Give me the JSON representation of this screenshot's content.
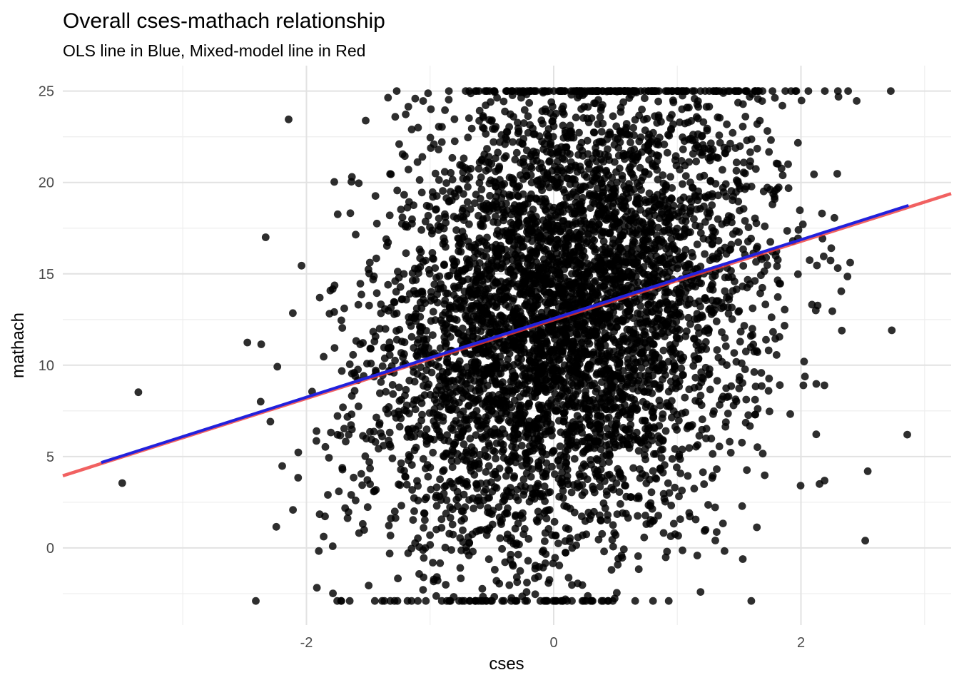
{
  "chart_data": {
    "type": "scatter",
    "title": "Overall cses-mathach relationship",
    "subtitle": "OLS line in Blue, Mixed-model line in Red",
    "xlabel": "cses",
    "ylabel": "mathach",
    "axes": {
      "xlim": [
        -3.971,
        3.215
      ],
      "ylim": [
        -4.219,
        26.391
      ],
      "x_major_ticks": [
        -2,
        0,
        2
      ],
      "x_minor_ticks": [
        -3,
        -1,
        1,
        3
      ],
      "y_major_ticks": [
        0,
        5,
        10,
        15,
        20,
        25
      ],
      "y_minor_ticks": [
        -2.5,
        2.5,
        7.5,
        12.5,
        17.5,
        22.5
      ],
      "grid": true,
      "legend": "none"
    },
    "lines": [
      {
        "name": "mixed-model",
        "label": "Mixed-model line (Red)",
        "color": "#ee3a3a",
        "opacity": 0.8,
        "width": 4.5,
        "slope": 2.148,
        "intercept": 12.48,
        "x_range": [
          -3.971,
          3.215
        ]
      },
      {
        "name": "ols",
        "label": "OLS line (Blue)",
        "color": "#2121dd",
        "opacity": 1.0,
        "width": 4.0,
        "slope": 2.154,
        "intercept": 12.56,
        "x_range": [
          -3.66,
          2.87
        ]
      }
    ],
    "points": {
      "n": 5200,
      "seed": 42,
      "x_mean": 0.08,
      "x_sd": 0.78,
      "x_clamp": [
        -3.76,
        2.87
      ],
      "y_intercept": 12.55,
      "y_slope": 2.15,
      "y_resid_sd": 6.6,
      "y_clamp": [
        -2.9,
        25.0
      ],
      "color": "#000000",
      "opacity": 0.82,
      "radius": 5.4
    },
    "outlier_points": [
      [
        -3.49,
        3.55
      ],
      [
        -3.36,
        8.52
      ],
      [
        -2.33,
        17.0
      ],
      [
        -2.11,
        12.85
      ],
      [
        2.86,
        6.2
      ],
      [
        2.54,
        4.2
      ],
      [
        2.15,
        3.5
      ],
      [
        2.19,
        8.9
      ],
      [
        2.17,
        18.3
      ],
      [
        1.98,
        17.4
      ],
      [
        2.12,
        13.0
      ],
      [
        2.52,
        0.4
      ]
    ]
  },
  "style": {
    "background": "#ffffff",
    "grid_major_color": "#e2e2e2",
    "grid_minor_color": "#efefef",
    "tick_label_color": "#4a4a4a",
    "text_color": "#000000"
  }
}
